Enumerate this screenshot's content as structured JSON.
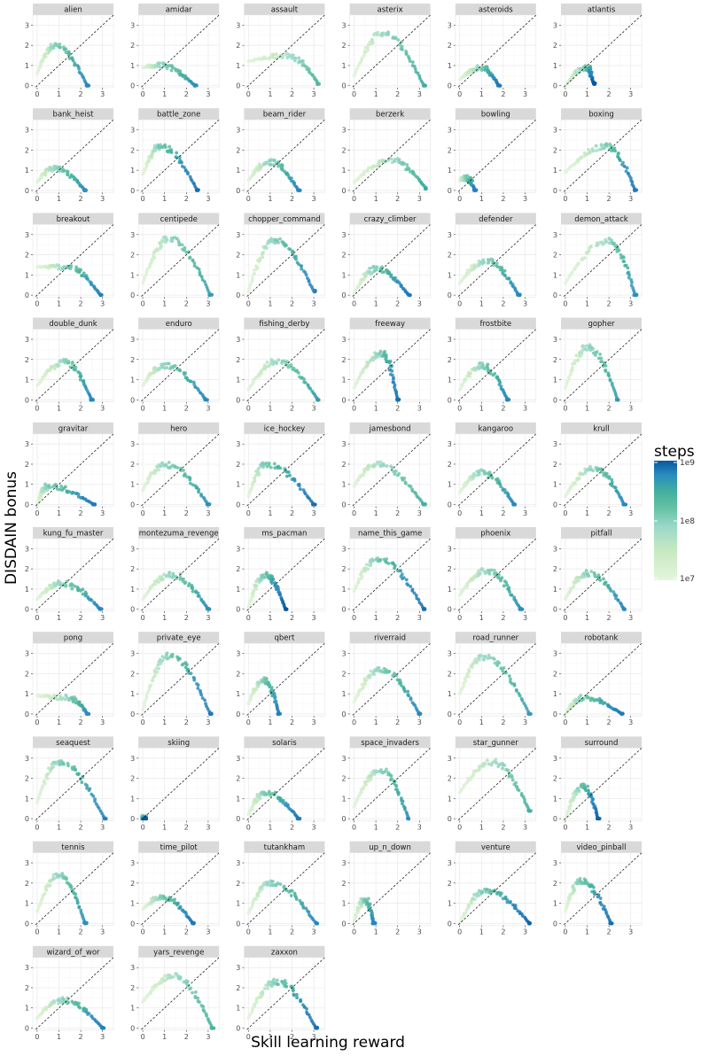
{
  "colors": {
    "strip": "#d9d9d9",
    "grid_major": "#ebebeb",
    "grid_minor": "#f5f5f5",
    "diagonal": "#000000",
    "palette": [
      "#e5f5df",
      "#c7e9c0",
      "#99d8c9",
      "#66c2a4",
      "#41ae9f",
      "#2b8cbe",
      "#1f78b4",
      "#08589e"
    ]
  },
  "axis_labels": {
    "x": "Skill learning reward",
    "y": "DISDAIN bonus"
  },
  "legend": {
    "title": "steps",
    "ticks": [
      "1e9",
      "1e8",
      "1e7"
    ]
  },
  "chart_data": {
    "type": "scatter",
    "facet_columns": 6,
    "xlim": [
      -0.2,
      3.5
    ],
    "ylim": [
      -0.1,
      3.5
    ],
    "x_ticks": [
      "0",
      "1",
      "2",
      "3"
    ],
    "y_ticks": [
      "0",
      "1",
      "2",
      "3"
    ],
    "reference_line": "y = x",
    "color_scale": {
      "variable": "steps",
      "type": "log",
      "domain": [
        10000000,
        1000000000
      ]
    },
    "panels": [
      {
        "name": "alien",
        "peak": [
          0.8,
          2.0
        ],
        "end": [
          2.3,
          0.0
        ],
        "start": [
          0.0,
          0.6
        ],
        "cmax": 0.75
      },
      {
        "name": "amidar",
        "peak": [
          0.8,
          1.0
        ],
        "end": [
          2.4,
          0.0
        ],
        "start": [
          0.0,
          0.9
        ],
        "cmax": 0.7
      },
      {
        "name": "assault",
        "peak": [
          1.8,
          1.5
        ],
        "end": [
          3.2,
          0.1
        ],
        "start": [
          0.0,
          1.2
        ],
        "cmax": 0.5
      },
      {
        "name": "asterix",
        "peak": [
          1.3,
          2.6
        ],
        "end": [
          3.2,
          0.0
        ],
        "start": [
          0.0,
          0.5
        ],
        "cmax": 0.6
      },
      {
        "name": "asteroids",
        "peak": [
          1.0,
          0.9
        ],
        "end": [
          1.8,
          0.0
        ],
        "start": [
          0.0,
          0.3
        ],
        "cmax": 0.85
      },
      {
        "name": "atlantis",
        "peak": [
          1.0,
          0.9
        ],
        "end": [
          1.3,
          0.1
        ],
        "start": [
          0.0,
          0.0
        ],
        "cmax": 1.0
      },
      {
        "name": "bank_heist",
        "peak": [
          0.8,
          1.1
        ],
        "end": [
          2.2,
          0.0
        ],
        "start": [
          0.0,
          0.4
        ],
        "cmax": 0.7
      },
      {
        "name": "battle_zone",
        "peak": [
          0.8,
          2.2
        ],
        "end": [
          2.5,
          0.0
        ],
        "start": [
          0.0,
          0.8
        ],
        "cmax": 0.9
      },
      {
        "name": "beam_rider",
        "peak": [
          1.0,
          1.4
        ],
        "end": [
          2.3,
          0.0
        ],
        "start": [
          0.0,
          0.5
        ],
        "cmax": 0.75
      },
      {
        "name": "berzerk",
        "peak": [
          1.7,
          1.5
        ],
        "end": [
          3.3,
          0.1
        ],
        "start": [
          0.0,
          0.4
        ],
        "cmax": 0.6
      },
      {
        "name": "bowling",
        "peak": [
          0.3,
          0.6
        ],
        "end": [
          0.7,
          0.0
        ],
        "start": [
          0.0,
          0.5
        ],
        "cmax": 0.8
      },
      {
        "name": "boxing",
        "peak": [
          1.9,
          2.2
        ],
        "end": [
          3.2,
          0.0
        ],
        "start": [
          0.0,
          0.9
        ],
        "cmax": 0.85
      },
      {
        "name": "breakout",
        "peak": [
          1.4,
          1.4
        ],
        "end": [
          2.9,
          0.0
        ],
        "start": [
          0.0,
          1.4
        ],
        "cmax": 0.8
      },
      {
        "name": "centipede",
        "peak": [
          1.2,
          2.8
        ],
        "end": [
          3.1,
          0.0
        ],
        "start": [
          0.0,
          0.6
        ],
        "cmax": 0.65
      },
      {
        "name": "chopper_command",
        "peak": [
          1.2,
          2.7
        ],
        "end": [
          3.0,
          0.2
        ],
        "start": [
          0.0,
          0.2
        ],
        "cmax": 0.8
      },
      {
        "name": "crazy_climber",
        "peak": [
          1.0,
          1.3
        ],
        "end": [
          2.5,
          0.0
        ],
        "start": [
          0.0,
          0.1
        ],
        "cmax": 0.85
      },
      {
        "name": "defender",
        "peak": [
          1.2,
          1.7
        ],
        "end": [
          2.7,
          0.0
        ],
        "start": [
          0.0,
          0.6
        ],
        "cmax": 0.75
      },
      {
        "name": "demon_attack",
        "peak": [
          2.0,
          2.7
        ],
        "end": [
          3.2,
          0.0
        ],
        "start": [
          0.0,
          0.6
        ],
        "cmax": 0.7
      },
      {
        "name": "double_dunk",
        "peak": [
          1.3,
          1.9
        ],
        "end": [
          2.5,
          0.0
        ],
        "start": [
          0.0,
          0.7
        ],
        "cmax": 0.75
      },
      {
        "name": "enduro",
        "peak": [
          1.0,
          1.7
        ],
        "end": [
          2.9,
          0.0
        ],
        "start": [
          0.0,
          0.7
        ],
        "cmax": 0.75
      },
      {
        "name": "fishing_derby",
        "peak": [
          1.3,
          1.9
        ],
        "end": [
          3.2,
          0.0
        ],
        "start": [
          0.0,
          0.5
        ],
        "cmax": 0.65
      },
      {
        "name": "freeway",
        "peak": [
          1.3,
          2.3
        ],
        "end": [
          2.0,
          0.0
        ],
        "start": [
          0.0,
          0.6
        ],
        "cmax": 0.9
      },
      {
        "name": "frostbite",
        "peak": [
          1.0,
          1.7
        ],
        "end": [
          2.2,
          0.0
        ],
        "start": [
          0.0,
          0.5
        ],
        "cmax": 0.75
      },
      {
        "name": "gopher",
        "peak": [
          1.0,
          2.6
        ],
        "end": [
          2.4,
          0.0
        ],
        "start": [
          0.0,
          0.6
        ],
        "cmax": 0.65
      },
      {
        "name": "gravitar",
        "peak": [
          0.5,
          0.9
        ],
        "end": [
          2.6,
          0.0
        ],
        "start": [
          0.0,
          0.0
        ],
        "cmax": 0.85
      },
      {
        "name": "hero",
        "peak": [
          1.0,
          2.0
        ],
        "end": [
          3.0,
          0.0
        ],
        "start": [
          0.0,
          0.7
        ],
        "cmax": 0.7
      },
      {
        "name": "ice_hockey",
        "peak": [
          0.8,
          2.0
        ],
        "end": [
          3.0,
          0.0
        ],
        "start": [
          0.0,
          0.4
        ],
        "cmax": 0.9
      },
      {
        "name": "jamesbond",
        "peak": [
          1.0,
          2.0
        ],
        "end": [
          3.2,
          0.0
        ],
        "start": [
          0.0,
          0.9
        ],
        "cmax": 0.55
      },
      {
        "name": "kangaroo",
        "peak": [
          1.0,
          1.6
        ],
        "end": [
          2.5,
          0.0
        ],
        "start": [
          0.0,
          0.6
        ],
        "cmax": 0.75
      },
      {
        "name": "krull",
        "peak": [
          1.3,
          1.8
        ],
        "end": [
          2.7,
          0.0
        ],
        "start": [
          0.0,
          0.4
        ],
        "cmax": 0.75
      },
      {
        "name": "kung_fu_master",
        "peak": [
          1.1,
          1.3
        ],
        "end": [
          2.9,
          0.0
        ],
        "start": [
          0.0,
          0.5
        ],
        "cmax": 0.75
      },
      {
        "name": "montezuma_revenge",
        "peak": [
          1.3,
          1.7
        ],
        "end": [
          3.0,
          0.0
        ],
        "start": [
          0.0,
          0.5
        ],
        "cmax": 0.7
      },
      {
        "name": "ms_pacman",
        "peak": [
          0.8,
          1.7
        ],
        "end": [
          1.7,
          0.0
        ],
        "start": [
          0.0,
          0.1
        ],
        "cmax": 1.0
      },
      {
        "name": "name_this_game",
        "peak": [
          1.1,
          2.5
        ],
        "end": [
          3.2,
          0.0
        ],
        "start": [
          0.0,
          0.9
        ],
        "cmax": 0.9
      },
      {
        "name": "phoenix",
        "peak": [
          1.2,
          1.9
        ],
        "end": [
          2.8,
          0.0
        ],
        "start": [
          0.0,
          0.7
        ],
        "cmax": 0.7
      },
      {
        "name": "pitfall",
        "peak": [
          1.0,
          1.8
        ],
        "end": [
          2.7,
          0.0
        ],
        "start": [
          0.0,
          0.5
        ],
        "cmax": 0.75
      },
      {
        "name": "pong",
        "peak": [
          1.5,
          0.8
        ],
        "end": [
          2.3,
          0.0
        ],
        "start": [
          0.0,
          0.9
        ],
        "cmax": 0.7
      },
      {
        "name": "private_eye",
        "peak": [
          1.2,
          2.9
        ],
        "end": [
          3.1,
          0.0
        ],
        "start": [
          0.0,
          0.2
        ],
        "cmax": 0.85
      },
      {
        "name": "qbert",
        "peak": [
          0.7,
          1.7
        ],
        "end": [
          1.4,
          0.0
        ],
        "start": [
          0.0,
          0.5
        ],
        "cmax": 0.8
      },
      {
        "name": "riverraid",
        "peak": [
          1.2,
          2.2
        ],
        "end": [
          3.0,
          0.0
        ],
        "start": [
          0.0,
          0.6
        ],
        "cmax": 0.75
      },
      {
        "name": "road_runner",
        "peak": [
          1.1,
          2.8
        ],
        "end": [
          3.2,
          0.0
        ],
        "start": [
          0.0,
          1.0
        ],
        "cmax": 0.65
      },
      {
        "name": "robotank",
        "peak": [
          0.8,
          0.8
        ],
        "end": [
          2.6,
          0.0
        ],
        "start": [
          0.0,
          0.0
        ],
        "cmax": 0.85
      },
      {
        "name": "seaquest",
        "peak": [
          1.0,
          2.8
        ],
        "end": [
          3.1,
          0.0
        ],
        "start": [
          0.0,
          0.8
        ],
        "cmax": 0.8
      },
      {
        "name": "skiing",
        "peak": [
          0.05,
          0.05
        ],
        "end": [
          0.1,
          0.0
        ],
        "start": [
          0.0,
          0.0
        ],
        "cmax": 1.0
      },
      {
        "name": "solaris",
        "peak": [
          0.8,
          1.3
        ],
        "end": [
          2.3,
          0.0
        ],
        "start": [
          0.0,
          0.2
        ],
        "cmax": 0.85
      },
      {
        "name": "space_invaders",
        "peak": [
          1.2,
          2.4
        ],
        "end": [
          2.5,
          0.0
        ],
        "start": [
          0.0,
          0.6
        ],
        "cmax": 0.7
      },
      {
        "name": "star_gunner",
        "peak": [
          1.5,
          2.8
        ],
        "end": [
          3.2,
          0.4
        ],
        "start": [
          0.0,
          1.3
        ],
        "cmax": 0.55
      },
      {
        "name": "surround",
        "peak": [
          0.8,
          1.6
        ],
        "end": [
          1.5,
          0.0
        ],
        "start": [
          0.0,
          0.0
        ],
        "cmax": 0.95
      },
      {
        "name": "tennis",
        "peak": [
          1.0,
          2.4
        ],
        "end": [
          2.2,
          0.0
        ],
        "start": [
          0.0,
          0.6
        ],
        "cmax": 0.7
      },
      {
        "name": "time_pilot",
        "peak": [
          0.9,
          1.3
        ],
        "end": [
          2.3,
          0.0
        ],
        "start": [
          0.0,
          0.7
        ],
        "cmax": 0.85
      },
      {
        "name": "tutankham",
        "peak": [
          1.0,
          2.0
        ],
        "end": [
          3.1,
          0.0
        ],
        "start": [
          0.0,
          0.5
        ],
        "cmax": 0.75
      },
      {
        "name": "up_n_down",
        "peak": [
          0.5,
          1.2
        ],
        "end": [
          0.9,
          0.0
        ],
        "start": [
          0.0,
          0.1
        ],
        "cmax": 0.75
      },
      {
        "name": "venture",
        "peak": [
          1.2,
          1.6
        ],
        "end": [
          3.2,
          0.0
        ],
        "start": [
          0.0,
          0.0
        ],
        "cmax": 0.95
      },
      {
        "name": "video_pinball",
        "peak": [
          0.7,
          2.1
        ],
        "end": [
          2.1,
          0.0
        ],
        "start": [
          0.0,
          0.6
        ],
        "cmax": 0.9
      },
      {
        "name": "wizard_of_wor",
        "peak": [
          1.2,
          1.4
        ],
        "end": [
          3.0,
          0.0
        ],
        "start": [
          0.0,
          0.5
        ],
        "cmax": 0.8
      },
      {
        "name": "yars_revenge",
        "peak": [
          1.4,
          2.6
        ],
        "end": [
          3.2,
          0.0
        ],
        "start": [
          0.0,
          1.3
        ],
        "cmax": 0.55
      },
      {
        "name": "zaxxon",
        "peak": [
          1.3,
          2.3
        ],
        "end": [
          3.1,
          0.0
        ],
        "start": [
          0.0,
          0.5
        ],
        "cmax": 0.9
      }
    ]
  }
}
